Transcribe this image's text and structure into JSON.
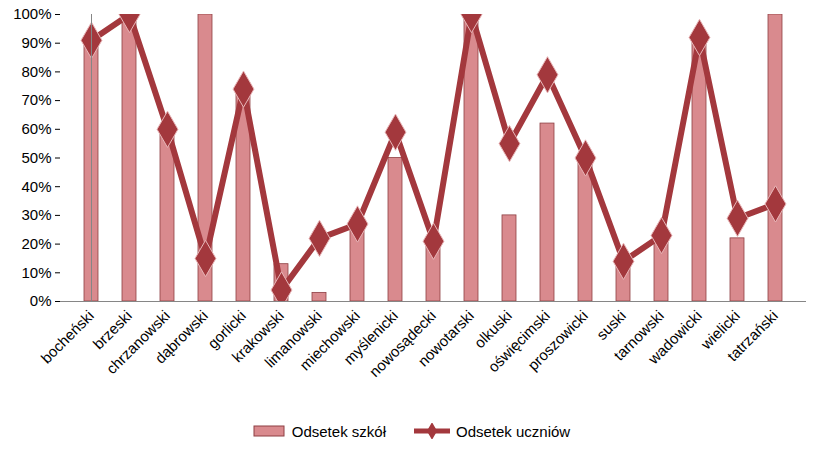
{
  "chart_data": {
    "type": "bar",
    "categories": [
      "bocheński",
      "brzeski",
      "chrzanowski",
      "dąbrowski",
      "gorlicki",
      "krakowski",
      "limanowski",
      "miechowski",
      "myślenicki",
      "nowosądecki",
      "nowotarski",
      "olkuski",
      "oświęcimski",
      "proszowicki",
      "suski",
      "tarnowski",
      "wadowicki",
      "wielicki",
      "tatrzański"
    ],
    "series": [
      {
        "name": "Odsetek szkół",
        "type": "bar",
        "color": "#d98a8e",
        "values": [
          90,
          100,
          60,
          100,
          73,
          13,
          3,
          27,
          50,
          21,
          100,
          30,
          62,
          50,
          15,
          23,
          90,
          22,
          100
        ]
      },
      {
        "name": "Odsetek uczniów",
        "type": "line",
        "color": "#a3383d",
        "marker": "diamond",
        "values": [
          91,
          100,
          60,
          15,
          74,
          4,
          22,
          27,
          59,
          21,
          100,
          55,
          79,
          50,
          14,
          23,
          92,
          29,
          34
        ]
      }
    ],
    "ylim": [
      0,
      100
    ],
    "yticks": [
      {
        "value": 0,
        "label": "0%"
      },
      {
        "value": 10,
        "label": "10%"
      },
      {
        "value": 20,
        "label": "20%"
      },
      {
        "value": 30,
        "label": "30%"
      },
      {
        "value": 40,
        "label": "40%"
      },
      {
        "value": 50,
        "label": "50%"
      },
      {
        "value": 60,
        "label": "60%"
      },
      {
        "value": 70,
        "label": "70%"
      },
      {
        "value": 80,
        "label": "80%"
      },
      {
        "value": 90,
        "label": "90%"
      },
      {
        "value": 100,
        "label": "100%"
      }
    ],
    "grid": false,
    "legend": "bottom"
  }
}
